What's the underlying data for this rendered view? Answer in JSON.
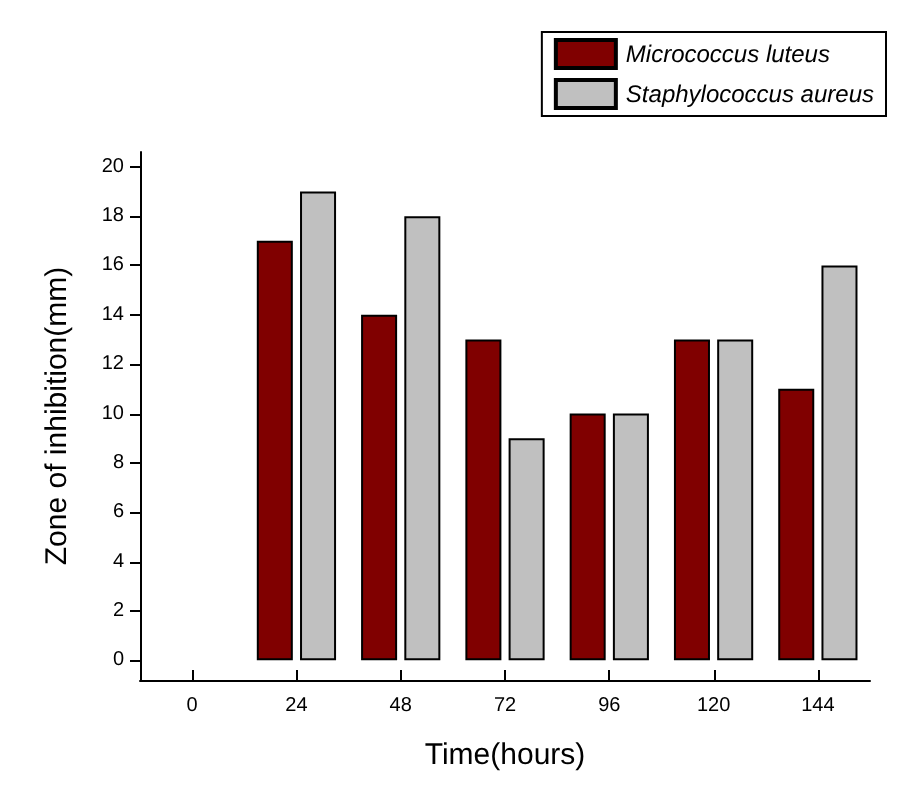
{
  "chart_data": {
    "type": "bar",
    "xlabel": "Time(hours)",
    "ylabel": "Zone of inhibition(mm)",
    "categories": [
      "0",
      "24",
      "48",
      "72",
      "96",
      "120",
      "144"
    ],
    "series": [
      {
        "name": "Micrococcus luteus",
        "color": "#800000",
        "values": [
          0,
          17,
          14,
          13,
          10,
          13,
          11
        ]
      },
      {
        "name": "Staphylococcus aureus",
        "color": "#c0c0c0",
        "values": [
          0,
          19,
          18,
          9,
          10,
          13,
          16
        ]
      }
    ],
    "ylim": [
      -0.8,
      20.6
    ],
    "yticks": [
      0,
      2,
      4,
      6,
      8,
      10,
      12,
      14,
      16,
      18,
      20
    ],
    "grid": false,
    "legend": "top right"
  }
}
